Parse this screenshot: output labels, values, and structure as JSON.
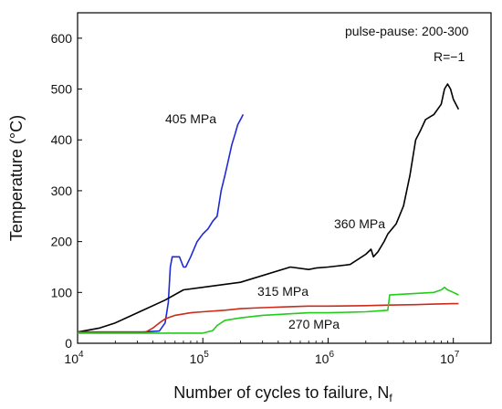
{
  "chart_data": {
    "type": "line",
    "xlabel": "Number of cycles to failure, N",
    "xlabel_sub": "f",
    "ylabel": "Temperature (°C)",
    "xscale": "log",
    "xlim": [
      10000,
      20000000
    ],
    "ylim": [
      0,
      650
    ],
    "x_ticks": [
      {
        "value": 10000,
        "base": "10",
        "exp": "4"
      },
      {
        "value": 100000,
        "base": "10",
        "exp": "5"
      },
      {
        "value": 1000000,
        "base": "10",
        "exp": "6"
      },
      {
        "value": 10000000,
        "base": "10",
        "exp": "7"
      }
    ],
    "y_ticks": [
      0,
      100,
      200,
      300,
      400,
      500,
      600
    ],
    "annotations": [
      "pulse-pause: 200-300",
      "R=−1"
    ],
    "series": [
      {
        "label": "405 MPa",
        "color": "#1f2ad6",
        "x": [
          10000,
          33000,
          45000,
          50000,
          53000,
          55000,
          57000,
          60000,
          65000,
          70000,
          73000,
          80000,
          90000,
          100000,
          110000,
          120000,
          130000,
          140000,
          150000,
          160000,
          170000,
          180000,
          190000,
          200000,
          210000
        ],
        "y": [
          22,
          22,
          24,
          40,
          80,
          150,
          170,
          170,
          170,
          150,
          150,
          170,
          200,
          215,
          225,
          240,
          250,
          300,
          330,
          360,
          390,
          410,
          430,
          440,
          450
        ]
      },
      {
        "label": "360 MPa",
        "color": "#000000",
        "x": [
          10000,
          15000,
          20000,
          30000,
          50000,
          70000,
          100000,
          200000,
          500000,
          700000,
          800000,
          1000000,
          1500000,
          2000000,
          2200000,
          2300000,
          2500000,
          2800000,
          3000000,
          3500000,
          4000000,
          4500000,
          5000000,
          5500000,
          6000000,
          7000000,
          8000000,
          8500000,
          9000000,
          9500000,
          10000000,
          11000000
        ],
        "y": [
          22,
          30,
          40,
          60,
          85,
          105,
          110,
          120,
          150,
          145,
          148,
          150,
          155,
          175,
          185,
          170,
          180,
          200,
          215,
          235,
          270,
          330,
          400,
          420,
          440,
          450,
          470,
          500,
          510,
          500,
          480,
          460
        ]
      },
      {
        "label": "315 MPa",
        "color": "#cc2a1a",
        "x": [
          10000,
          35000,
          40000,
          45000,
          50000,
          60000,
          80000,
          100000,
          150000,
          200000,
          300000,
          500000,
          700000,
          1000000,
          2000000,
          3000000,
          5000000,
          7000000,
          10000000,
          11000000
        ],
        "y": [
          22,
          22,
          30,
          40,
          48,
          55,
          60,
          62,
          65,
          68,
          70,
          72,
          73,
          73,
          74,
          75,
          76,
          77,
          78,
          78
        ]
      },
      {
        "label": "270 MPa",
        "color": "#22cc1a",
        "x": [
          10000,
          100000,
          120000,
          130000,
          150000,
          200000,
          300000,
          500000,
          700000,
          1000000,
          2000000,
          3000000,
          3100000,
          5000000,
          7000000,
          8000000,
          8500000,
          9000000,
          10000000,
          11000000
        ],
        "y": [
          20,
          20,
          25,
          35,
          45,
          50,
          55,
          58,
          60,
          60,
          62,
          65,
          95,
          98,
          100,
          105,
          110,
          105,
          100,
          95
        ]
      }
    ]
  }
}
